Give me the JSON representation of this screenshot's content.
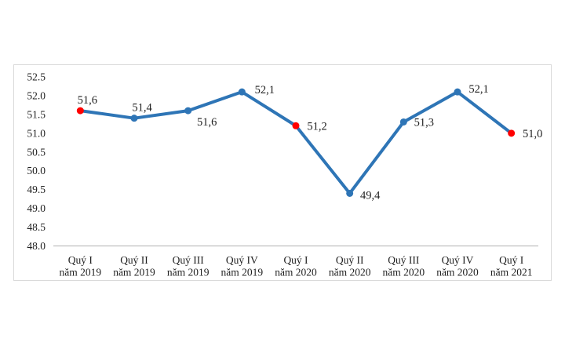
{
  "page": {
    "background_color": "#ffffff"
  },
  "chart_data": {
    "type": "line",
    "title": "",
    "xlabel": "",
    "ylabel": "",
    "categories": [
      {
        "line1": "Quý I",
        "line2": "năm 2019"
      },
      {
        "line1": "Quý II",
        "line2": "năm 2019"
      },
      {
        "line1": "Quý III",
        "line2": "năm 2019"
      },
      {
        "line1": "Quý IV",
        "line2": "năm 2019"
      },
      {
        "line1": "Quý I",
        "line2": "năm 2020"
      },
      {
        "line1": "Quý II",
        "line2": "năm 2020"
      },
      {
        "line1": "Quý III",
        "line2": "năm 2020"
      },
      {
        "line1": "Quý IV",
        "line2": "năm 2020"
      },
      {
        "line1": "Quý I",
        "line2": "năm 2021"
      }
    ],
    "values": [
      51.6,
      51.4,
      51.6,
      52.1,
      51.2,
      49.4,
      51.3,
      52.1,
      51.0
    ],
    "point_labels": [
      "51,6",
      "51,4",
      "51,6",
      "52,1",
      "51,2",
      "49,4",
      "51,3",
      "52,1",
      "51,0"
    ],
    "marker_colors": [
      "#ff0000",
      "#2e75b6",
      "#2e75b6",
      "#2e75b6",
      "#ff0000",
      "#2e75b6",
      "#2e75b6",
      "#2e75b6",
      "#ff0000"
    ],
    "line_color": "#2e75b6",
    "marker_red": "#ff0000",
    "text_color": "#1f1f1f",
    "axis_line_color": "#bfbfbf",
    "frame_border_color": "#d9d9d9",
    "ylim": [
      48.0,
      52.5
    ],
    "ytick_step": 0.5,
    "ytick_labels": [
      "52.5",
      "52.0",
      "51.5",
      "51.0",
      "50.5",
      "50.0",
      "49.5",
      "49.0",
      "48.5",
      "48.0"
    ],
    "grid": false,
    "legend": "none"
  }
}
